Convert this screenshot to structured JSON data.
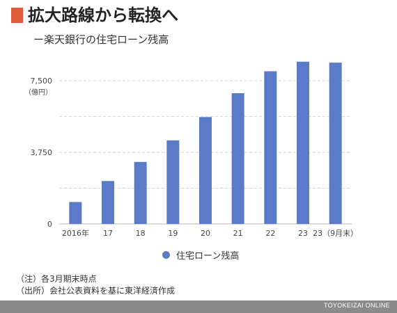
{
  "header": {
    "title": "拡大路線から転換へ",
    "subtitle": "ー楽天銀行の住宅ローン残高"
  },
  "colors": {
    "accent": "#e05a3a",
    "bar": "#5b7bc8",
    "footer_bg": "#8a8a8a"
  },
  "chart_data": {
    "type": "bar",
    "title": "",
    "ylabel": "（億円）",
    "ylim": [
      0,
      9000
    ],
    "ytick_labels": [
      "0",
      "3,750",
      "7,500"
    ],
    "yticks": [
      0,
      3750,
      7500
    ],
    "grid": true,
    "categories": [
      "2016年",
      "17",
      "18",
      "19",
      "20",
      "21",
      "22",
      "23",
      "23（9月末）"
    ],
    "series": [
      {
        "name": "住宅ローン残高",
        "values": [
          1150,
          2250,
          3250,
          4380,
          5600,
          6850,
          8000,
          8500,
          8450
        ]
      }
    ],
    "legend": "bottom-center"
  },
  "notes": [
    "（注）各3月期末時点",
    "（出所）会社公表資料を基に東洋経済作成"
  ],
  "footer": {
    "brand": "TOYOKEIZAI ONLINE"
  }
}
